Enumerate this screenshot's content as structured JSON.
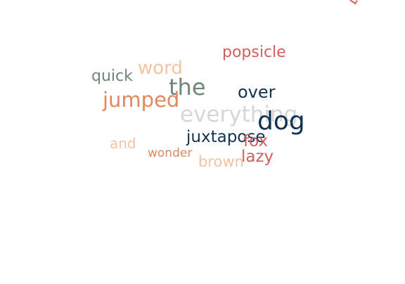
{
  "palette": {
    "red": "#d35f5f",
    "peach": "#f3c4a4",
    "sage": "#6f8578",
    "orange": "#e0885e",
    "navy": "#13324f",
    "gray": "#d6d6d6"
  },
  "words": [
    {
      "id": "popsicle",
      "text": "popsicle",
      "color": "#d35f5f"
    },
    {
      "id": "word",
      "text": "word",
      "color": "#f3c4a4"
    },
    {
      "id": "quick",
      "text": "quick",
      "color": "#6f8578"
    },
    {
      "id": "the",
      "text": "the",
      "color": "#6f8578"
    },
    {
      "id": "over",
      "text": "over",
      "color": "#13324f"
    },
    {
      "id": "jumped",
      "text": "jumped",
      "color": "#e0885e"
    },
    {
      "id": "everything",
      "text": "everything",
      "color": "#d6d6d6"
    },
    {
      "id": "dog",
      "text": "dog",
      "color": "#13324f"
    },
    {
      "id": "juxtapose",
      "text": "juxtapose",
      "color": "#13324f"
    },
    {
      "id": "fox",
      "text": "fox",
      "color": "#d35f5f"
    },
    {
      "id": "and",
      "text": "and",
      "color": "#f3c4a4"
    },
    {
      "id": "wonder",
      "text": "wonder",
      "color": "#e0885e"
    },
    {
      "id": "lazy",
      "text": "lazy",
      "color": "#d35f5f"
    },
    {
      "id": "brown",
      "text": "brown",
      "color": "#f3c4a4"
    }
  ]
}
